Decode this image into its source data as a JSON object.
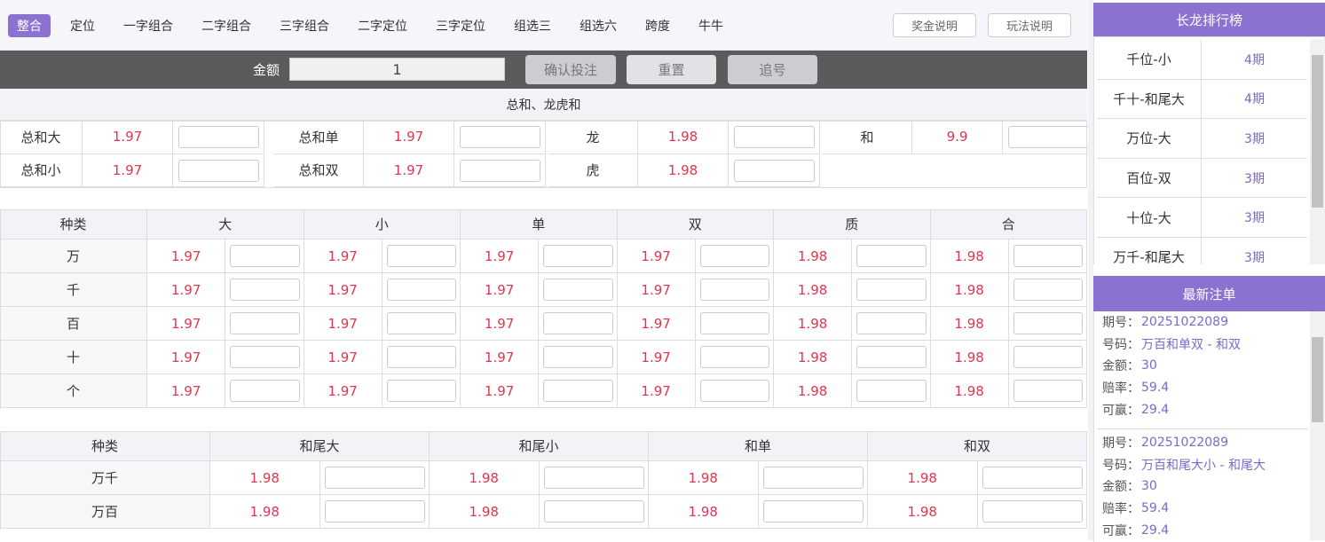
{
  "tabs": [
    "整合",
    "定位",
    "一字组合",
    "二字组合",
    "三字组合",
    "二字定位",
    "三字定位",
    "组选三",
    "组选六",
    "跨度",
    "牛牛"
  ],
  "active_tab": 0,
  "help_buttons": [
    "奖金说明",
    "玩法说明"
  ],
  "bet_bar": {
    "amount_label": "金额",
    "amount": "1",
    "buttons": [
      "确认投注",
      "重置",
      "追号"
    ]
  },
  "sum_section": {
    "title": "总和、龙虎和",
    "rows": [
      [
        [
          "总和大",
          "1.97"
        ],
        [
          "总和单",
          "1.97"
        ],
        [
          "龙",
          "1.98"
        ],
        [
          "和",
          "9.9"
        ]
      ],
      [
        [
          "总和小",
          "1.97"
        ],
        [
          "总和双",
          "1.97"
        ],
        [
          "虎",
          "1.98"
        ]
      ]
    ]
  },
  "digit_table": {
    "headers": [
      "种类",
      "大",
      "小",
      "单",
      "双",
      "质",
      "合"
    ],
    "rows": [
      {
        "label": "万",
        "odds": [
          "1.97",
          "1.97",
          "1.97",
          "1.97",
          "1.98",
          "1.98"
        ]
      },
      {
        "label": "千",
        "odds": [
          "1.97",
          "1.97",
          "1.97",
          "1.97",
          "1.98",
          "1.98"
        ]
      },
      {
        "label": "百",
        "odds": [
          "1.97",
          "1.97",
          "1.97",
          "1.97",
          "1.98",
          "1.98"
        ]
      },
      {
        "label": "十",
        "odds": [
          "1.97",
          "1.97",
          "1.97",
          "1.97",
          "1.98",
          "1.98"
        ]
      },
      {
        "label": "个",
        "odds": [
          "1.97",
          "1.97",
          "1.97",
          "1.97",
          "1.98",
          "1.98"
        ]
      }
    ]
  },
  "tail_table": {
    "headers": [
      "种类",
      "和尾大",
      "和尾小",
      "和单",
      "和双"
    ],
    "rows": [
      {
        "label": "万千",
        "odds": [
          "1.98",
          "1.98",
          "1.98",
          "1.98"
        ]
      },
      {
        "label": "万百",
        "odds": [
          "1.98",
          "1.98",
          "1.98",
          "1.98"
        ]
      }
    ]
  },
  "long_dragon": {
    "title": "长龙排行榜",
    "rows": [
      [
        "千位-小",
        "4期"
      ],
      [
        "千十-和尾大",
        "4期"
      ],
      [
        "万位-大",
        "3期"
      ],
      [
        "百位-双",
        "3期"
      ],
      [
        "十位-大",
        "3期"
      ],
      [
        "万千-和尾大",
        "3期"
      ]
    ]
  },
  "latest_bets": {
    "title": "最新注单",
    "labels": [
      "期号：",
      "号码：",
      "金额：",
      "赔率：",
      "可赢："
    ],
    "bets": [
      [
        "20251022089",
        "万百和单双 - 和双",
        "30",
        "59.4",
        "29.4"
      ],
      [
        "20251022089",
        "万百和尾大小 - 和尾大",
        "30",
        "59.4",
        "29.4"
      ]
    ]
  }
}
